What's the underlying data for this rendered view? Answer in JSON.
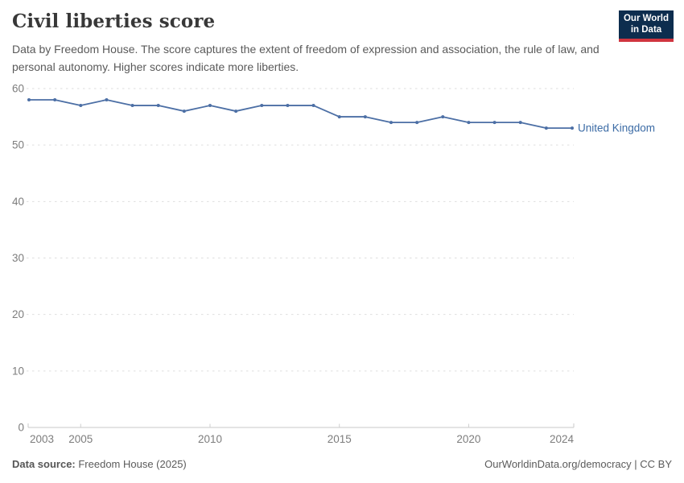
{
  "header": {
    "title": "Civil liberties score",
    "subtitle": "Data by Freedom House. The score captures the extent of freedom of expression and association, the rule of law, and personal autonomy. Higher scores indicate more liberties."
  },
  "logo": {
    "line1": "Our World",
    "line2": "in Data",
    "bg_color": "#0d2d4e",
    "bar_color": "#d0353f"
  },
  "chart_data": {
    "type": "line",
    "title": "Civil liberties score",
    "x": [
      2003,
      2004,
      2005,
      2006,
      2007,
      2008,
      2009,
      2010,
      2011,
      2012,
      2013,
      2014,
      2015,
      2016,
      2017,
      2018,
      2019,
      2020,
      2021,
      2022,
      2023,
      2024
    ],
    "series": [
      {
        "name": "United Kingdom",
        "color": "#4C6FA5",
        "label_color": "#3B6BA5",
        "values": [
          58,
          58,
          57,
          58,
          57,
          57,
          56,
          57,
          56,
          57,
          57,
          57,
          55,
          55,
          54,
          54,
          55,
          54,
          54,
          54,
          53,
          53
        ]
      }
    ],
    "xlabel": "",
    "ylabel": "",
    "ylim": [
      0,
      60
    ],
    "yticks": [
      0,
      10,
      20,
      30,
      40,
      50,
      60
    ],
    "xticks": [
      2003,
      2005,
      2010,
      2015,
      2020,
      2024
    ],
    "grid": "horizontal-dashed",
    "legend_position": "right-of-line",
    "colors": {
      "gridline": "#dedede",
      "axis_line": "#c9c9c9",
      "tick_mark": "#cfcfcf",
      "tick_label": "#7d7d7d"
    }
  },
  "footer": {
    "source_label": "Data source:",
    "source_value": " Freedom House (2025)",
    "credit": "OurWorldinData.org/democracy | CC BY"
  }
}
